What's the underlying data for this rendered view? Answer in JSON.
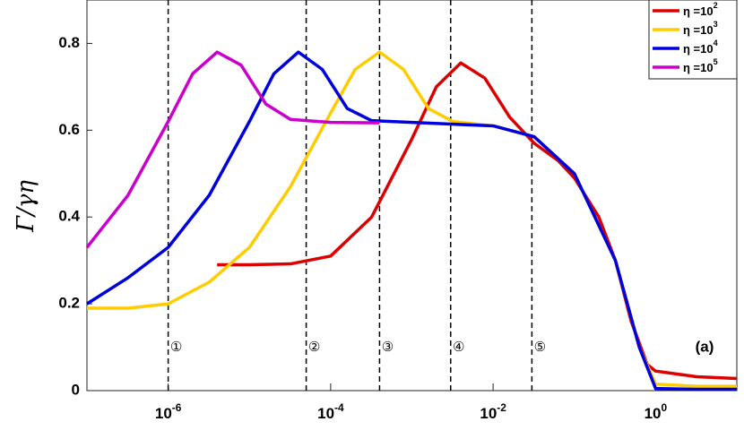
{
  "chart_data": {
    "type": "line",
    "ylabel": "Γ/γη",
    "annotation": "(a)",
    "log_x": true,
    "xlim": [
      1e-07,
      10
    ],
    "ylim": [
      0,
      0.9
    ],
    "xticks": [
      {
        "value": 1e-06,
        "label": "10-6"
      },
      {
        "value": 0.0001,
        "label": "10-4"
      },
      {
        "value": 0.01,
        "label": "10-2"
      },
      {
        "value": 1,
        "label": "100"
      }
    ],
    "yticks": [
      0,
      0.2,
      0.4,
      0.6,
      0.8
    ],
    "legend": "upper right",
    "vlines": [
      {
        "x": 1e-06,
        "label": "①"
      },
      {
        "x": 5e-05,
        "label": "②"
      },
      {
        "x": 0.0004,
        "label": "③"
      },
      {
        "x": 0.003,
        "label": "④"
      },
      {
        "x": 0.03,
        "label": "⑤"
      }
    ],
    "vline_label_y": 0.1,
    "series": [
      {
        "name": "η =102",
        "color": "#dd0000",
        "x": [
          4e-06,
          1e-05,
          3.2e-05,
          0.0001,
          0.00032,
          0.001,
          0.002,
          0.004,
          0.0079,
          0.016,
          0.032,
          0.063,
          0.1,
          0.2,
          0.32,
          0.5,
          0.79,
          1,
          3.2,
          10
        ],
        "values": [
          0.29,
          0.29,
          0.292,
          0.31,
          0.4,
          0.58,
          0.7,
          0.755,
          0.72,
          0.63,
          0.57,
          0.53,
          0.49,
          0.4,
          0.3,
          0.16,
          0.06,
          0.045,
          0.032,
          0.028
        ]
      },
      {
        "name": "η =103",
        "color": "#ffcc00",
        "x": [
          1e-07,
          3.2e-07,
          1e-06,
          3.2e-06,
          1e-05,
          3.2e-05,
          0.0001,
          0.0002,
          0.0004,
          0.00079,
          0.0016,
          0.0032,
          0.01,
          0.032,
          0.1,
          0.32,
          0.63,
          1,
          3.2,
          10
        ],
        "values": [
          0.19,
          0.19,
          0.2,
          0.25,
          0.33,
          0.47,
          0.64,
          0.74,
          0.78,
          0.74,
          0.65,
          0.62,
          0.61,
          0.585,
          0.5,
          0.3,
          0.1,
          0.015,
          0.01,
          0.01
        ]
      },
      {
        "name": "η =104",
        "color": "#0000dd",
        "x": [
          1e-07,
          3.2e-07,
          1e-06,
          3.2e-06,
          1e-05,
          2e-05,
          4e-05,
          7.9e-05,
          0.00016,
          0.00032,
          0.001,
          0.01,
          0.032,
          0.1,
          0.32,
          0.63,
          1,
          3.2,
          10
        ],
        "values": [
          0.2,
          0.26,
          0.33,
          0.45,
          0.62,
          0.73,
          0.78,
          0.74,
          0.65,
          0.622,
          0.618,
          0.61,
          0.585,
          0.5,
          0.3,
          0.1,
          0.005,
          0.003,
          0.003
        ]
      },
      {
        "name": "η =105",
        "color": "#cc00cc",
        "x": [
          1e-07,
          3.2e-07,
          1e-06,
          2e-06,
          4e-06,
          7.9e-06,
          1.6e-05,
          3.2e-05,
          0.0001,
          0.0004
        ],
        "values": [
          0.33,
          0.45,
          0.62,
          0.73,
          0.78,
          0.75,
          0.66,
          0.625,
          0.618,
          0.617
        ]
      }
    ]
  }
}
